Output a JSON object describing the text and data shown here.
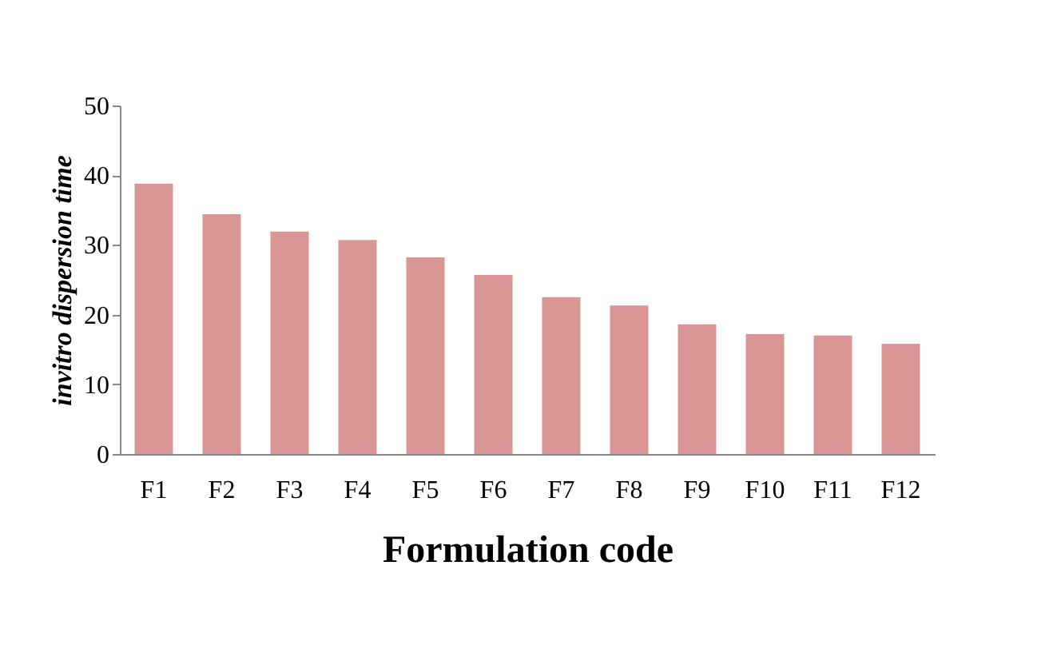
{
  "chart_data": {
    "type": "bar",
    "xlabel": "Formulation code",
    "ylabel": "invitro dispersion time",
    "categories": [
      "F1",
      "F2",
      "F3",
      "F4",
      "F5",
      "F6",
      "F7",
      "F8",
      "F9",
      "F10",
      "F11",
      "F12"
    ],
    "values": [
      38.8,
      34.4,
      31.9,
      30.7,
      28.2,
      25.7,
      22.5,
      21.3,
      18.6,
      17.2,
      17.0,
      15.8
    ],
    "color": "#d99694",
    "ylim": [
      0,
      50
    ],
    "yticks": [
      0,
      10,
      20,
      30,
      40,
      50
    ],
    "grid": false
  }
}
